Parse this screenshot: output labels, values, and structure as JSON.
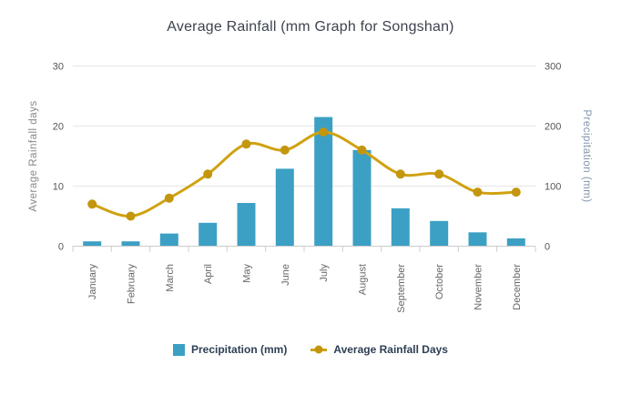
{
  "chart_data": {
    "type": "combo-bar-line",
    "title": "Average Rainfall (mm Graph for Songshan)",
    "categories": [
      "January",
      "February",
      "March",
      "April",
      "May",
      "June",
      "July",
      "August",
      "September",
      "October",
      "November",
      "December"
    ],
    "series": [
      {
        "name": "Precipitation (mm)",
        "type": "bar",
        "axis": "right",
        "color": "#3ba0c4",
        "values": [
          8,
          8,
          21,
          39,
          72,
          129,
          215,
          160,
          63,
          42,
          23,
          13
        ]
      },
      {
        "name": "Average Rainfall Days",
        "type": "line",
        "axis": "left",
        "color": "#d0a212",
        "marker_color": "#c3960e",
        "values": [
          7,
          5,
          8,
          12,
          17,
          16,
          19,
          16,
          12,
          12,
          9,
          9
        ]
      }
    ],
    "left_axis": {
      "title": "Average Rainfall days",
      "min": 0,
      "max": 30,
      "ticks": [
        0,
        10,
        20,
        30
      ]
    },
    "right_axis": {
      "title": "Precipitation (mm)",
      "min": 0,
      "max": 300,
      "ticks": [
        0,
        100,
        200,
        300
      ]
    },
    "grid": true,
    "legend_position": "bottom"
  },
  "colors": {
    "gridline": "#e6e6e6",
    "axis_line": "#cccccc",
    "tick_label": "#555555",
    "month_label": "#666666",
    "left_axis_title": "#888888",
    "right_axis_title": "#8296ab",
    "title_text": "#3d4450",
    "legend_text": "#2e3f54",
    "background": "#ffffff"
  }
}
